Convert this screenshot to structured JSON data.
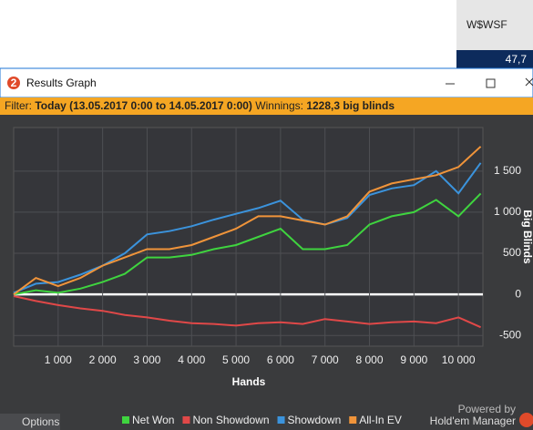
{
  "app": {
    "hud_stat": "W$WSF",
    "hud_value": "47,7",
    "icon_label": "2",
    "window_title": "Results Graph",
    "filter_label": "Filter:",
    "filter_value": "Today (13.05.2017 0:00 to 14.05.2017 0:00)",
    "winnings_label": "Winnings:",
    "winnings_value": "1228,3 big blinds",
    "options": "Options",
    "powered_by": "Powered by",
    "brand": "Hold'em Manager"
  },
  "chart_data": {
    "type": "line",
    "xlabel": "Hands",
    "ylabel": "Big Blinds",
    "x": [
      0,
      500,
      1000,
      1500,
      2000,
      2500,
      3000,
      3500,
      4000,
      4500,
      5000,
      5500,
      6000,
      6500,
      7000,
      7500,
      8000,
      8500,
      9000,
      9500,
      10000,
      10500
    ],
    "series": [
      {
        "name": "Net Won",
        "color": "#3fd43f",
        "values": [
          0,
          50,
          20,
          70,
          150,
          250,
          450,
          450,
          480,
          550,
          600,
          700,
          800,
          550,
          550,
          600,
          850,
          950,
          1000,
          1150,
          950,
          1228
        ]
      },
      {
        "name": "Non Showdown",
        "color": "#e04848",
        "values": [
          -20,
          -80,
          -130,
          -170,
          -200,
          -250,
          -280,
          -320,
          -350,
          -360,
          -380,
          -350,
          -340,
          -360,
          -300,
          -330,
          -360,
          -340,
          -330,
          -350,
          -280,
          -400
        ]
      },
      {
        "name": "Showdown",
        "color": "#3b93dc",
        "values": [
          20,
          130,
          150,
          240,
          350,
          500,
          730,
          770,
          830,
          910,
          980,
          1050,
          1140,
          910,
          850,
          930,
          1210,
          1290,
          1330,
          1500,
          1230,
          1600
        ]
      },
      {
        "name": "All-In EV",
        "color": "#f0943a",
        "values": [
          0,
          200,
          100,
          200,
          350,
          450,
          550,
          550,
          600,
          700,
          800,
          950,
          950,
          900,
          850,
          950,
          1250,
          1350,
          1400,
          1450,
          1550,
          1800
        ]
      }
    ],
    "xlim": [
      0,
      10550
    ],
    "ylim": [
      -630,
      2030
    ],
    "xticks": [
      {
        "value": 1000,
        "label": "1 000"
      },
      {
        "value": 2000,
        "label": "2 000"
      },
      {
        "value": 3000,
        "label": "3 000"
      },
      {
        "value": 4000,
        "label": "4 000"
      },
      {
        "value": 5000,
        "label": "5 000"
      },
      {
        "value": 6000,
        "label": "6 000"
      },
      {
        "value": 7000,
        "label": "7 000"
      },
      {
        "value": 8000,
        "label": "8 000"
      },
      {
        "value": 9000,
        "label": "9 000"
      },
      {
        "value": 10000,
        "label": "10 000"
      }
    ],
    "yticks": [
      {
        "value": 1500,
        "label": "1 500"
      },
      {
        "value": 1000,
        "label": "1 000"
      },
      500,
      0,
      -500
    ],
    "grid": true
  }
}
